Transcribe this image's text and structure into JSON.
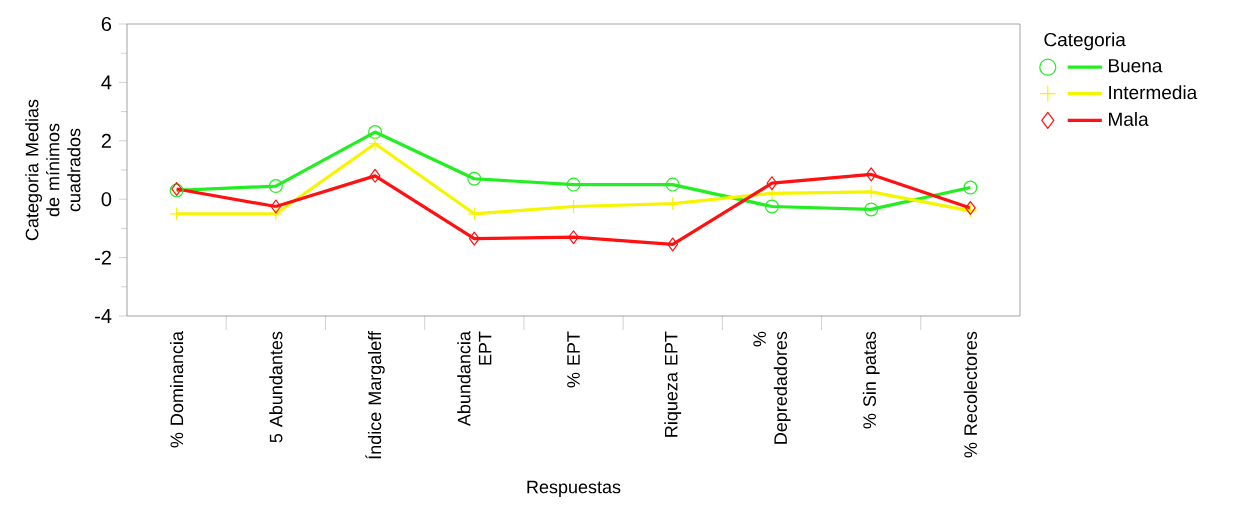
{
  "chart_data": {
    "type": "line",
    "xlabel": "Respuestas",
    "ylabel": "Categoria Medias de mínimos cuadrados",
    "legend_title": "Categoria",
    "legend": "right",
    "categories": [
      "% Dominancia",
      "5 Abundantes",
      "Índice Margaleff",
      "Abundancia EPT",
      "% EPT",
      "Riqueza EPT",
      "% Depredadores",
      "% Sin patas",
      "% Recolectores"
    ],
    "ylim": [
      -4,
      6
    ],
    "yticks": [
      -4,
      -2,
      0,
      2,
      4,
      6
    ],
    "line_style": "solid",
    "series": [
      {
        "name": "Buena",
        "color": "#22ee22",
        "marker": "circle",
        "values": [
          0.3,
          0.45,
          2.3,
          0.7,
          0.5,
          0.5,
          -0.25,
          -0.35,
          0.4
        ]
      },
      {
        "name": "Intermedia",
        "color": "#f5f500",
        "marker": "cross",
        "values": [
          -0.5,
          -0.5,
          1.9,
          -0.5,
          -0.25,
          -0.15,
          0.2,
          0.25,
          -0.4
        ]
      },
      {
        "name": "Mala",
        "color": "#ff1111",
        "marker": "diamond",
        "values": [
          0.35,
          -0.25,
          0.8,
          -1.35,
          -1.3,
          -1.55,
          0.55,
          0.85,
          -0.3
        ]
      }
    ]
  }
}
